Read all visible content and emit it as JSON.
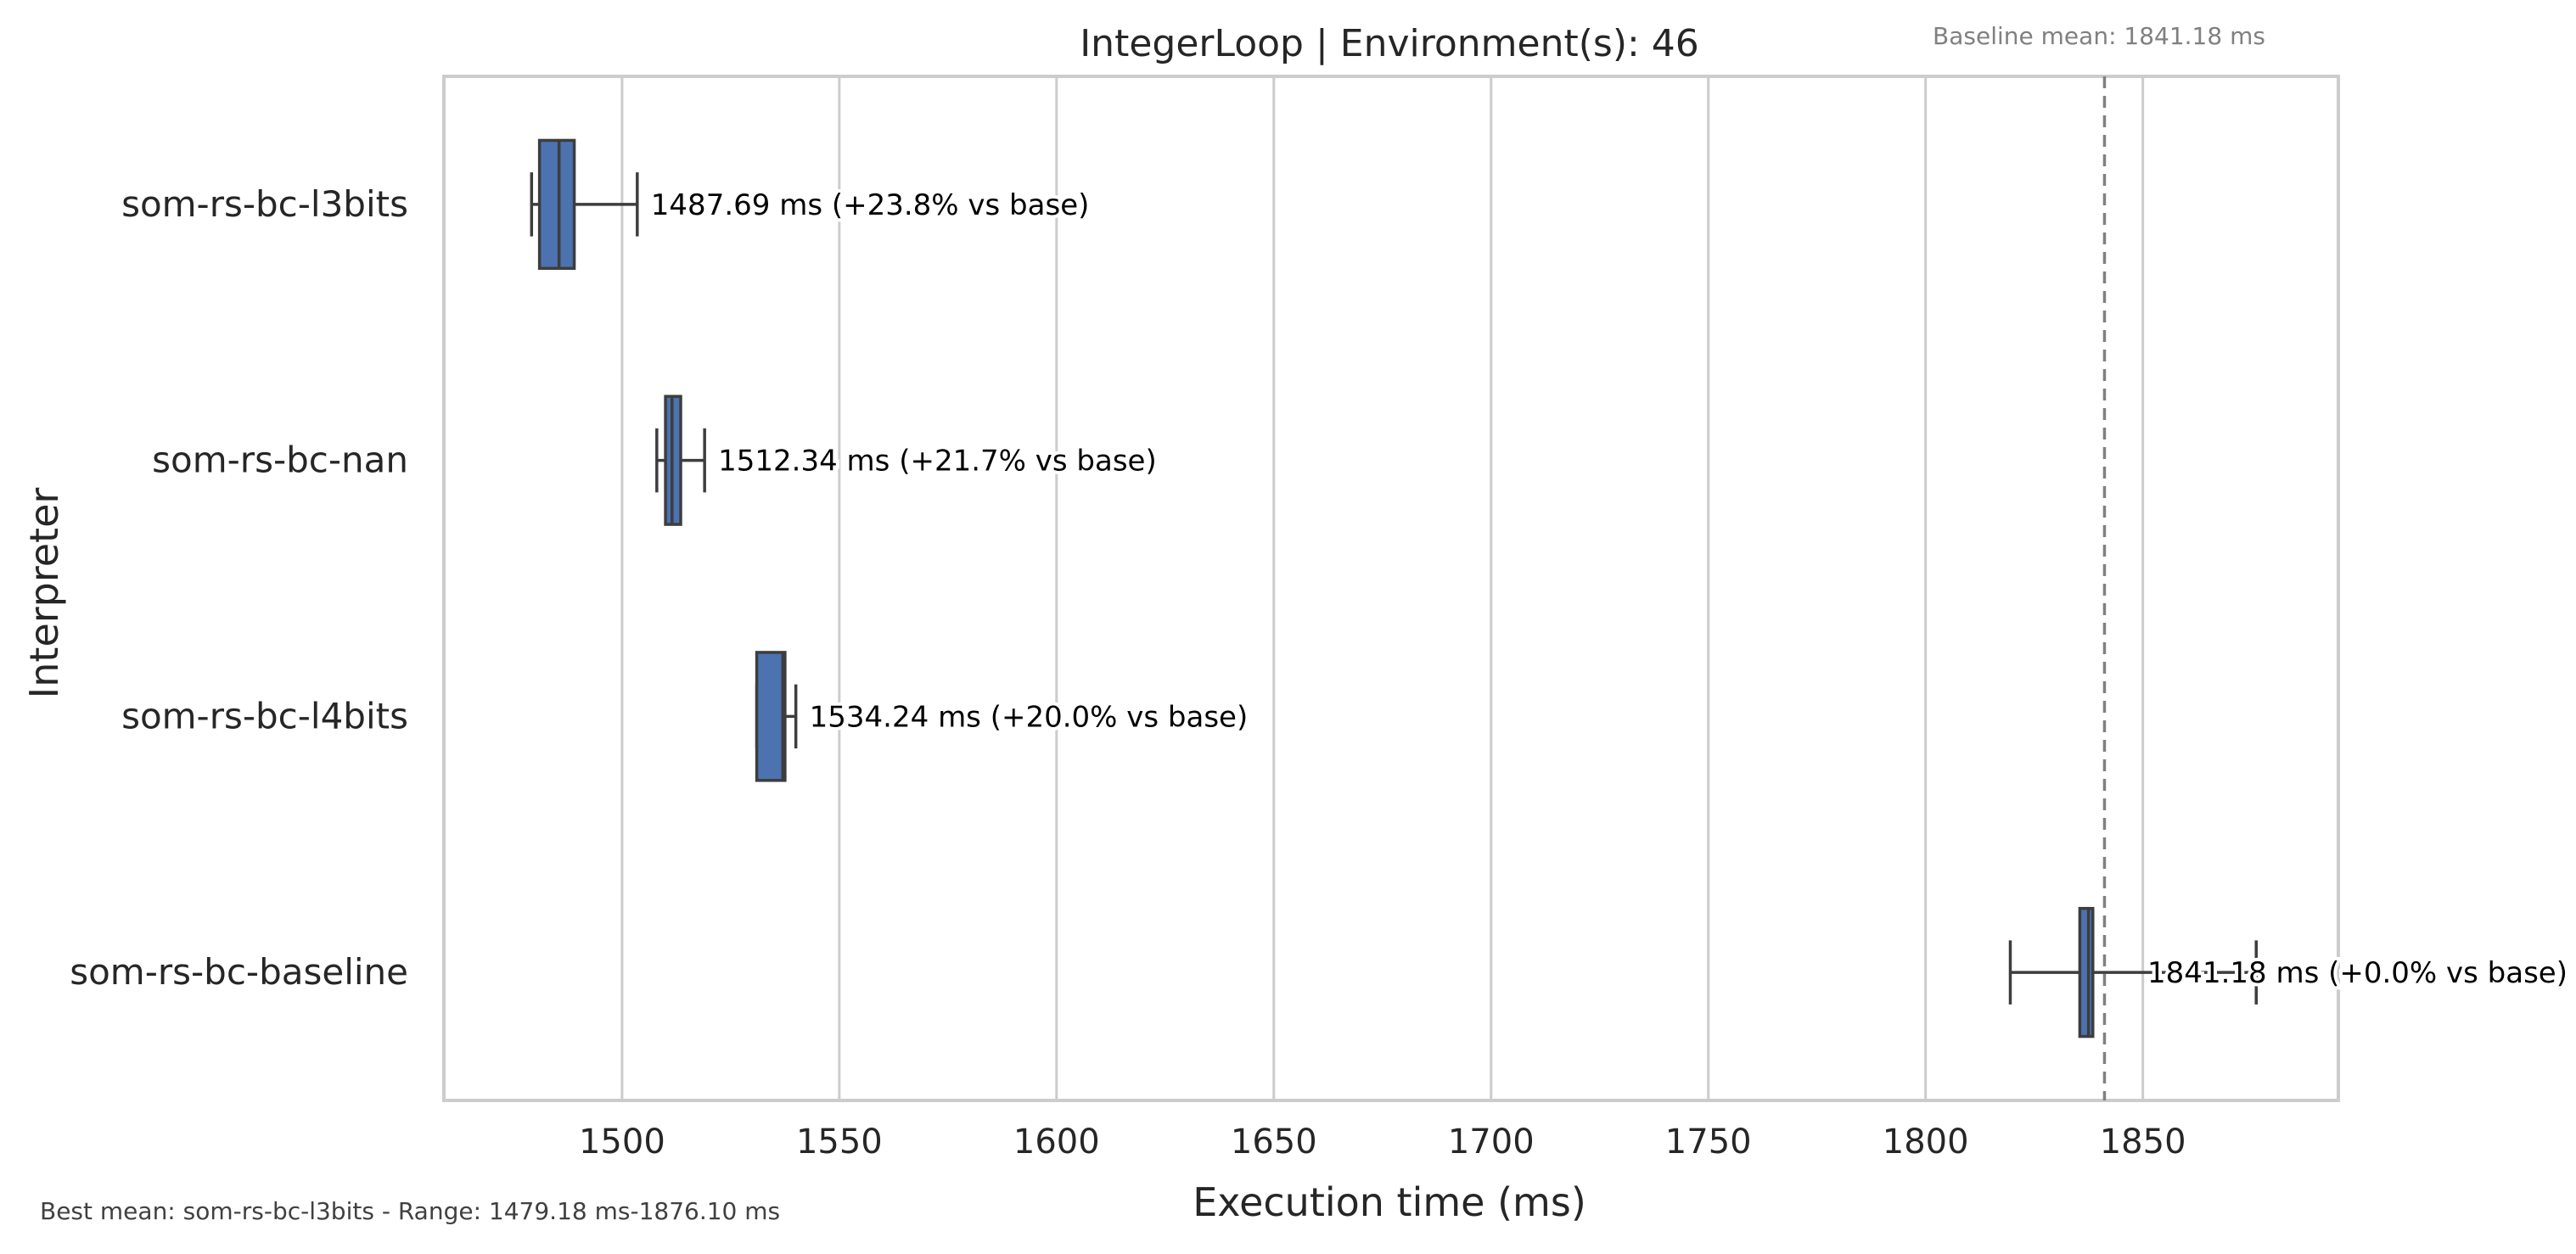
{
  "chart_data": {
    "type": "box",
    "title": "IntegerLoop | Environment(s): 46",
    "subtitle": "Baseline mean: 1841.18 ms",
    "footer": "Best mean: som-rs-bc-l3bits - Range: 1479.18 ms-1876.10 ms",
    "xlabel": "Execution time (ms)",
    "ylabel": "Interpreter",
    "xlim": [
      1459,
      1895
    ],
    "xticks": [
      1500,
      1550,
      1600,
      1650,
      1700,
      1750,
      1800,
      1850
    ],
    "grid": "vertical",
    "baseline_mean": 1841.18,
    "colors": {
      "box": "#4c72b0",
      "box_edge": "#3d3d3d",
      "grid": "#cccccc",
      "baseline_line": "#808080",
      "axis": "#cccccc",
      "text": "#262626",
      "muted": "#808080"
    },
    "categories": [
      "som-rs-bc-l3bits",
      "som-rs-bc-nan",
      "som-rs-bc-l4bits",
      "som-rs-bc-baseline"
    ],
    "series": [
      {
        "name": "som-rs-bc-l3bits",
        "whisker_low": 1479.18,
        "q1": 1481.0,
        "median": 1485.5,
        "q3": 1489.0,
        "whisker_high": 1503.5,
        "mean": 1487.69,
        "label": "1487.69 ms  (+23.8% vs base)"
      },
      {
        "name": "som-rs-bc-nan",
        "whisker_low": 1508.0,
        "q1": 1510.0,
        "median": 1511.5,
        "q3": 1513.5,
        "whisker_high": 1519.0,
        "mean": 1512.34,
        "label": "1512.34 ms  (+21.7% vs base)"
      },
      {
        "name": "som-rs-bc-l4bits",
        "whisker_low": 1531.0,
        "q1": 1531.0,
        "median": 1537.0,
        "q3": 1537.5,
        "whisker_high": 1540.0,
        "mean": 1534.24,
        "label": "1534.24 ms  (+20.0% vs base)"
      },
      {
        "name": "som-rs-bc-baseline",
        "whisker_low": 1819.5,
        "q1": 1835.5,
        "median": 1837.5,
        "q3": 1838.5,
        "whisker_high": 1876.1,
        "mean": 1841.18,
        "label": "1841.18 ms  (+0.0% vs base)"
      }
    ]
  }
}
